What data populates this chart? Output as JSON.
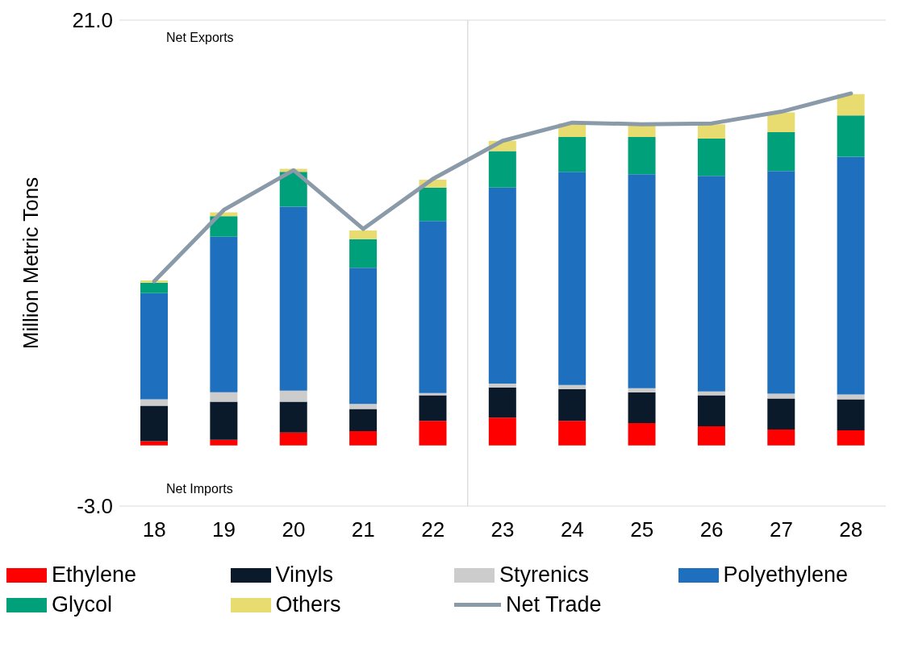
{
  "chart_data": {
    "type": "bar",
    "stacked": true,
    "ylabel": "Million Metric Tons",
    "x": [
      18,
      19,
      20,
      21,
      22,
      23,
      24,
      25,
      26,
      27,
      28
    ],
    "xlim": [
      17.5,
      28.5
    ],
    "xticks": [
      18,
      19,
      20,
      21,
      22,
      23,
      24,
      25,
      26,
      27,
      28
    ],
    "ylim": [
      -3,
      21
    ],
    "yticks": [
      {
        "value": -3,
        "label": "-3.0"
      },
      {
        "value": 21,
        "label": "21.0"
      }
    ],
    "legend": "bottom",
    "series": [
      {
        "name": "Ethylene",
        "color": "#ff0000",
        "values": [
          0.2,
          0.27,
          0.63,
          0.7,
          1.21,
          1.37,
          1.21,
          1.1,
          0.94,
          0.78,
          0.74
        ]
      },
      {
        "name": "Vinyls",
        "color": "#0a1a2a",
        "values": [
          1.76,
          1.88,
          1.52,
          1.1,
          1.26,
          1.49,
          1.57,
          1.52,
          1.53,
          1.53,
          1.53
        ]
      },
      {
        "name": "Styrenics",
        "color": "#cccccc",
        "values": [
          0.31,
          0.47,
          0.55,
          0.24,
          0.11,
          0.19,
          0.2,
          0.2,
          0.19,
          0.24,
          0.24
        ]
      },
      {
        "name": "Polyethylene",
        "color": "#1f6fbf",
        "values": [
          5.25,
          7.68,
          9.09,
          6.73,
          8.5,
          9.68,
          10.53,
          10.57,
          10.65,
          11.0,
          11.74
        ]
      },
      {
        "name": "Glycol",
        "color": "#00a07a",
        "values": [
          0.51,
          1.02,
          1.72,
          1.41,
          1.65,
          1.8,
          1.72,
          1.84,
          1.84,
          1.92,
          2.04
        ]
      },
      {
        "name": "Others",
        "color": "#e8dc70",
        "values": [
          0.11,
          0.19,
          0.15,
          0.43,
          0.39,
          0.51,
          0.67,
          0.59,
          0.71,
          0.97,
          1.06
        ]
      },
      {
        "name": "Net Trade",
        "type": "line",
        "color": "#8a9aa8",
        "values": [
          8.1,
          11.63,
          13.59,
          10.69,
          13.16,
          15.04,
          15.94,
          15.86,
          15.9,
          16.48,
          17.38
        ]
      }
    ],
    "ref_lines": [
      {
        "axis": "x",
        "value": 22.5,
        "color": "#cccccc"
      },
      {
        "axis": "y",
        "value": 21,
        "color": "#d9d9d9"
      }
    ],
    "annotations": [
      "Net Exports",
      "Net Imports"
    ]
  }
}
